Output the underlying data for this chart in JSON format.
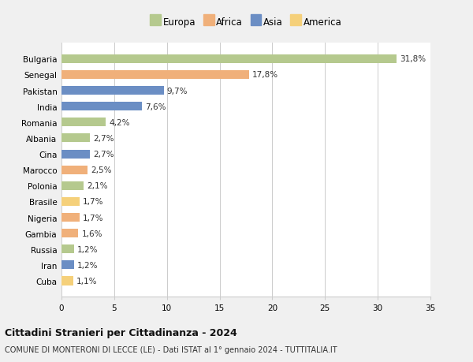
{
  "categories": [
    "Bulgaria",
    "Senegal",
    "Pakistan",
    "India",
    "Romania",
    "Albania",
    "Cina",
    "Marocco",
    "Polonia",
    "Brasile",
    "Nigeria",
    "Gambia",
    "Russia",
    "Iran",
    "Cuba"
  ],
  "values": [
    31.8,
    17.8,
    9.7,
    7.6,
    4.2,
    2.7,
    2.7,
    2.5,
    2.1,
    1.7,
    1.7,
    1.6,
    1.2,
    1.2,
    1.1
  ],
  "labels": [
    "31,8%",
    "17,8%",
    "9,7%",
    "7,6%",
    "4,2%",
    "2,7%",
    "2,7%",
    "2,5%",
    "2,1%",
    "1,7%",
    "1,7%",
    "1,6%",
    "1,2%",
    "1,2%",
    "1,1%"
  ],
  "continents": [
    "Europa",
    "Africa",
    "Asia",
    "Asia",
    "Europa",
    "Europa",
    "Asia",
    "Africa",
    "Europa",
    "America",
    "Africa",
    "Africa",
    "Europa",
    "Asia",
    "America"
  ],
  "colors": {
    "Europa": "#b5c98e",
    "Africa": "#f0b07a",
    "Asia": "#6b8ec4",
    "America": "#f5d07a"
  },
  "legend_labels": [
    "Europa",
    "Africa",
    "Asia",
    "America"
  ],
  "legend_colors": [
    "#b5c98e",
    "#f0b07a",
    "#6b8ec4",
    "#f5d07a"
  ],
  "title": "Cittadini Stranieri per Cittadinanza - 2024",
  "subtitle": "COMUNE DI MONTERONI DI LECCE (LE) - Dati ISTAT al 1° gennaio 2024 - TUTTITALIA.IT",
  "xlim": [
    0,
    35
  ],
  "xticks": [
    0,
    5,
    10,
    15,
    20,
    25,
    30,
    35
  ],
  "background_color": "#f0f0f0",
  "bar_background": "#ffffff",
  "grid_color": "#cccccc"
}
